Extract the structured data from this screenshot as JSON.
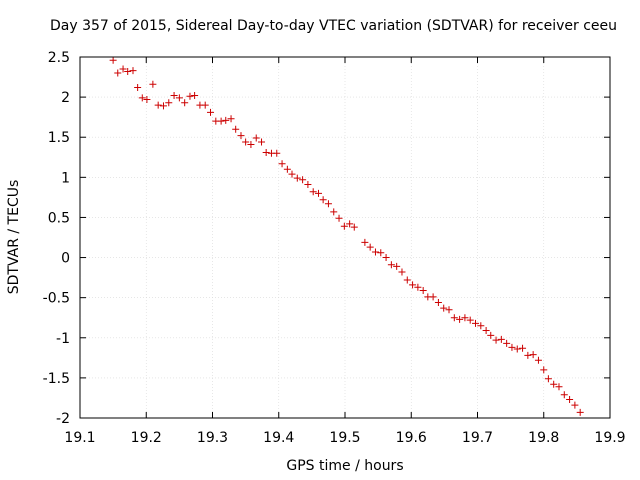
{
  "chart_data": {
    "type": "scatter",
    "title": "Day 357 of 2015, Sidereal Day-to-day VTEC variation (SDTVAR) for receiver ceeu",
    "xlabel": "GPS time / hours",
    "ylabel": "SDTVAR / TECUs",
    "xlim": [
      19.1,
      19.9
    ],
    "ylim": [
      -2,
      2.5
    ],
    "xticks": [
      "19.1",
      "19.2",
      "19.3",
      "19.4",
      "19.5",
      "19.6",
      "19.7",
      "19.8",
      "19.9"
    ],
    "yticks": [
      "-2",
      "-1.5",
      "-1",
      "-0.5",
      "0",
      "0.5",
      "1",
      "1.5",
      "2",
      "2.5"
    ],
    "grid": true,
    "marker": "+",
    "color": "#cc0000",
    "series": [
      {
        "name": "SDTVAR",
        "points": [
          [
            19.15,
            2.46
          ],
          [
            19.157,
            2.3
          ],
          [
            19.165,
            2.35
          ],
          [
            19.172,
            2.32
          ],
          [
            19.18,
            2.33
          ],
          [
            19.187,
            2.12
          ],
          [
            19.194,
            1.99
          ],
          [
            19.201,
            1.97
          ],
          [
            19.21,
            2.16
          ],
          [
            19.218,
            1.9
          ],
          [
            19.226,
            1.89
          ],
          [
            19.234,
            1.93
          ],
          [
            19.242,
            2.02
          ],
          [
            19.25,
            1.99
          ],
          [
            19.258,
            1.93
          ],
          [
            19.266,
            2.01
          ],
          [
            19.273,
            2.02
          ],
          [
            19.281,
            1.9
          ],
          [
            19.289,
            1.9
          ],
          [
            19.297,
            1.81
          ],
          [
            19.305,
            1.7
          ],
          [
            19.313,
            1.7
          ],
          [
            19.32,
            1.71
          ],
          [
            19.328,
            1.73
          ],
          [
            19.335,
            1.6
          ],
          [
            19.343,
            1.52
          ],
          [
            19.35,
            1.44
          ],
          [
            19.358,
            1.41
          ],
          [
            19.366,
            1.49
          ],
          [
            19.374,
            1.44
          ],
          [
            19.381,
            1.31
          ],
          [
            19.389,
            1.3
          ],
          [
            19.397,
            1.3
          ],
          [
            19.405,
            1.17
          ],
          [
            19.413,
            1.1
          ],
          [
            19.42,
            1.04
          ],
          [
            19.428,
            0.99
          ],
          [
            19.436,
            0.97
          ],
          [
            19.444,
            0.91
          ],
          [
            19.452,
            0.82
          ],
          [
            19.46,
            0.8
          ],
          [
            19.467,
            0.72
          ],
          [
            19.475,
            0.67
          ],
          [
            19.483,
            0.57
          ],
          [
            19.491,
            0.49
          ],
          [
            19.499,
            0.39
          ],
          [
            19.507,
            0.42
          ],
          [
            19.514,
            0.38
          ],
          [
            19.53,
            0.19
          ],
          [
            19.538,
            0.13
          ],
          [
            19.546,
            0.07
          ],
          [
            19.554,
            0.06
          ],
          [
            19.562,
            0.0
          ],
          [
            19.57,
            -0.09
          ],
          [
            19.578,
            -0.11
          ],
          [
            19.586,
            -0.18
          ],
          [
            19.594,
            -0.28
          ],
          [
            19.602,
            -0.34
          ],
          [
            19.61,
            -0.37
          ],
          [
            19.618,
            -0.41
          ],
          [
            19.625,
            -0.49
          ],
          [
            19.633,
            -0.49
          ],
          [
            19.641,
            -0.56
          ],
          [
            19.649,
            -0.63
          ],
          [
            19.657,
            -0.65
          ],
          [
            19.665,
            -0.75
          ],
          [
            19.673,
            -0.77
          ],
          [
            19.681,
            -0.75
          ],
          [
            19.689,
            -0.78
          ],
          [
            19.697,
            -0.82
          ],
          [
            19.705,
            -0.85
          ],
          [
            19.713,
            -0.91
          ],
          [
            19.72,
            -0.97
          ],
          [
            19.728,
            -1.03
          ],
          [
            19.736,
            -1.02
          ],
          [
            19.744,
            -1.07
          ],
          [
            19.752,
            -1.12
          ],
          [
            19.76,
            -1.14
          ],
          [
            19.768,
            -1.13
          ],
          [
            19.776,
            -1.22
          ],
          [
            19.784,
            -1.21
          ],
          [
            19.792,
            -1.28
          ],
          [
            19.8,
            -1.4
          ],
          [
            19.807,
            -1.51
          ],
          [
            19.815,
            -1.58
          ],
          [
            19.823,
            -1.61
          ],
          [
            19.831,
            -1.71
          ],
          [
            19.839,
            -1.77
          ],
          [
            19.847,
            -1.84
          ],
          [
            19.855,
            -1.93
          ]
        ]
      }
    ]
  }
}
